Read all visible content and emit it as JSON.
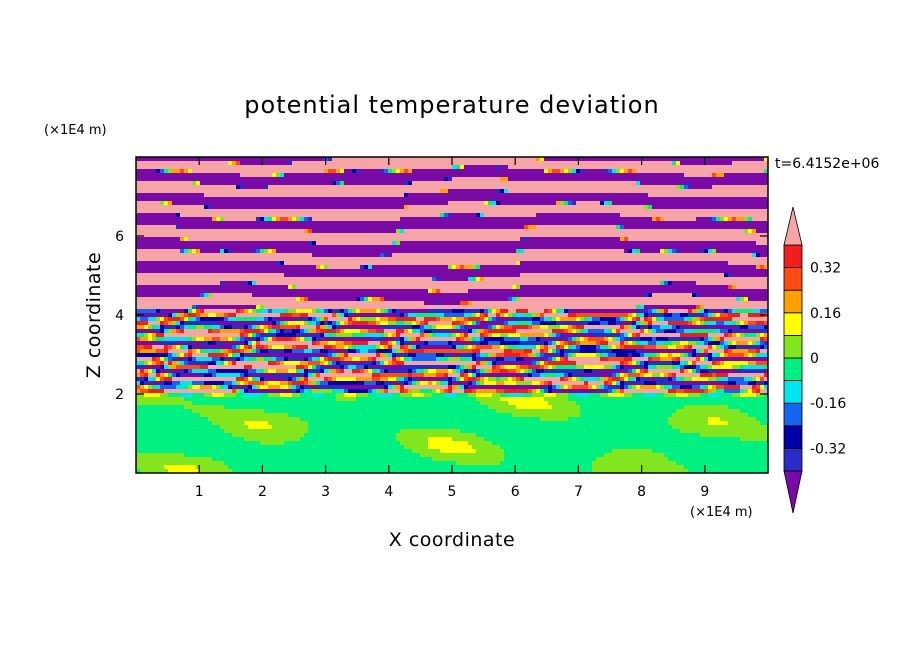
{
  "chart_data": {
    "type": "heatmap",
    "title": "potential temperature deviation",
    "xlabel": "X coordinate",
    "ylabel": "Z coordinate",
    "x_unit": "(×1E4 m)",
    "y_unit": "(×1E4 m)",
    "time_label": "t=6.4152e+06",
    "xlim": [
      0,
      10
    ],
    "ylim": [
      0,
      8
    ],
    "x_ticks": [
      "1",
      "2",
      "3",
      "4",
      "5",
      "6",
      "7",
      "8",
      "9"
    ],
    "y_ticks": [
      "2",
      "4",
      "6"
    ],
    "colorbar": {
      "tick_labels": [
        "0.32",
        "0.16",
        "0",
        "-0.16",
        "-0.32"
      ],
      "tick_values": [
        0.32,
        0.16,
        0,
        -0.16,
        -0.32
      ],
      "levels": [
        -0.4,
        -0.32,
        -0.24,
        -0.16,
        -0.08,
        0,
        0.08,
        0.16,
        0.24,
        0.32,
        0.4
      ],
      "colors": [
        "#7a0aa8",
        "#2b2bc8",
        "#0000a6",
        "#1464f0",
        "#00e6f0",
        "#00f082",
        "#82e61e",
        "#ffff00",
        "#ffa000",
        "#ff4a14",
        "#f01e1e",
        "#f5a5a5"
      ],
      "extend": "both"
    },
    "layers": [
      {
        "description": "upper region",
        "z_range": [
          4.2,
          8.0
        ],
        "pattern": "alternating bands",
        "values": [
          0.4,
          -0.4
        ]
      },
      {
        "description": "mixing region",
        "z_range": [
          2.0,
          4.2
        ],
        "pattern": "turbulent mixed layers",
        "values": [
          -0.4,
          0.4
        ]
      },
      {
        "description": "lower region",
        "z_range": [
          0.0,
          2.0
        ],
        "pattern": "near-zero field",
        "values": [
          -0.08,
          0.08
        ]
      }
    ]
  }
}
